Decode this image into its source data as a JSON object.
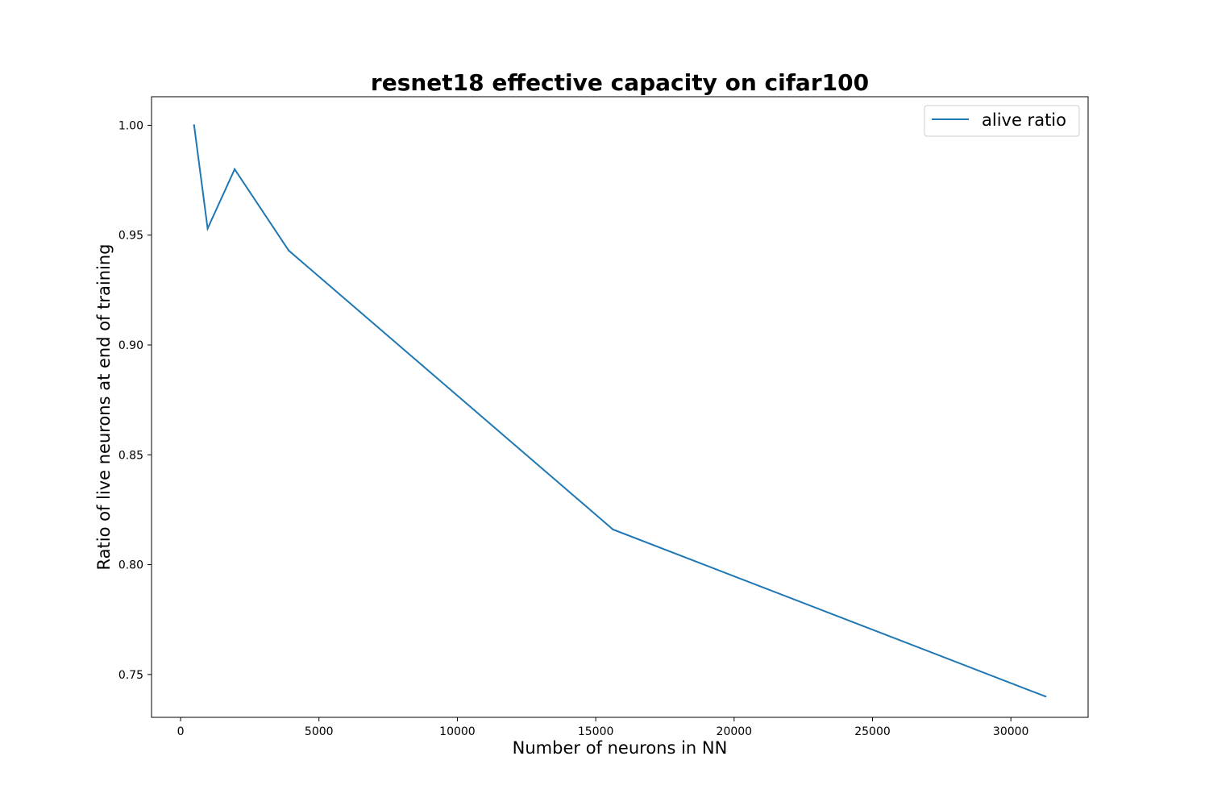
{
  "chart_data": {
    "type": "line",
    "title": "resnet18 effective capacity on cifar100",
    "xlabel": "Number of neurons in NN",
    "ylabel": "Ratio of live neurons at end of training",
    "xlim": [
      -1050,
      32790
    ],
    "ylim": [
      0.7305,
      1.013
    ],
    "xticks": [
      0,
      5000,
      10000,
      15000,
      20000,
      25000,
      30000
    ],
    "xtick_labels": [
      "0",
      "5000",
      "10000",
      "15000",
      "20000",
      "25000",
      "30000"
    ],
    "yticks": [
      0.75,
      0.8,
      0.85,
      0.9,
      0.95,
      1.0
    ],
    "ytick_labels": [
      "0.75",
      "0.80",
      "0.85",
      "0.90",
      "0.95",
      "1.00"
    ],
    "grid": false,
    "legend_position": "top-right",
    "series": [
      {
        "name": "alive ratio",
        "color": "#1f77b4",
        "x": [
          488,
          977,
          1953,
          3906,
          15625,
          31250
        ],
        "y": [
          1.0,
          0.953,
          0.98,
          0.943,
          0.816,
          0.74
        ]
      }
    ]
  }
}
